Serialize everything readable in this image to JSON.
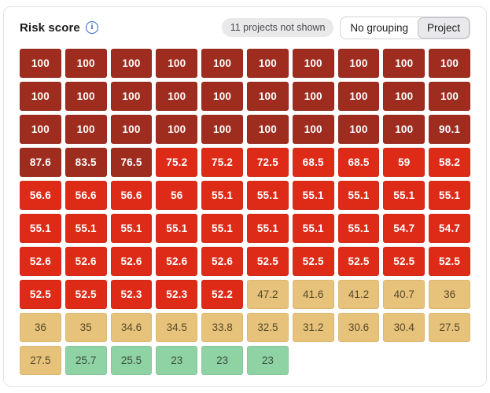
{
  "header": {
    "title": "Risk score",
    "info_icon": "i",
    "badge": "11 projects not shown",
    "grouping": [
      {
        "label": "No grouping",
        "selected": false
      },
      {
        "label": "Project",
        "selected": true
      }
    ]
  },
  "colors": {
    "accent_blue": "#2e5fc3",
    "badge_bg": "#e9e9ea",
    "card_border": "#e4e4e4",
    "levels": {
      "d": {
        "bg": "#9e2c1f",
        "text": "#ffffff"
      },
      "r": {
        "bg": "#dd2b17",
        "text": "#ffffff"
      },
      "t": {
        "bg": "#e7c27a",
        "text": "#57492a"
      },
      "g": {
        "bg": "#8fd2a3",
        "text": "#3a4f41"
      }
    }
  },
  "chart_data": {
    "type": "heatmap",
    "title": "Risk score",
    "note": "11 projects not shown",
    "grouping_options": [
      "No grouping",
      "Project"
    ],
    "selected_grouping": "Project",
    "columns": 10,
    "value_range": [
      0,
      100
    ],
    "legend": {
      "d": "critical (dark red)",
      "r": "high (red)",
      "t": "medium (tan)",
      "g": "low (green)"
    },
    "tiles": [
      {
        "value": "100",
        "level": "d"
      },
      {
        "value": "100",
        "level": "d"
      },
      {
        "value": "100",
        "level": "d"
      },
      {
        "value": "100",
        "level": "d"
      },
      {
        "value": "100",
        "level": "d"
      },
      {
        "value": "100",
        "level": "d"
      },
      {
        "value": "100",
        "level": "d"
      },
      {
        "value": "100",
        "level": "d"
      },
      {
        "value": "100",
        "level": "d"
      },
      {
        "value": "100",
        "level": "d"
      },
      {
        "value": "100",
        "level": "d"
      },
      {
        "value": "100",
        "level": "d"
      },
      {
        "value": "100",
        "level": "d"
      },
      {
        "value": "100",
        "level": "d"
      },
      {
        "value": "100",
        "level": "d"
      },
      {
        "value": "100",
        "level": "d"
      },
      {
        "value": "100",
        "level": "d"
      },
      {
        "value": "100",
        "level": "d"
      },
      {
        "value": "100",
        "level": "d"
      },
      {
        "value": "100",
        "level": "d"
      },
      {
        "value": "100",
        "level": "d"
      },
      {
        "value": "100",
        "level": "d"
      },
      {
        "value": "100",
        "level": "d"
      },
      {
        "value": "100",
        "level": "d"
      },
      {
        "value": "100",
        "level": "d"
      },
      {
        "value": "100",
        "level": "d"
      },
      {
        "value": "100",
        "level": "d"
      },
      {
        "value": "100",
        "level": "d"
      },
      {
        "value": "100",
        "level": "d"
      },
      {
        "value": "90.1",
        "level": "d"
      },
      {
        "value": "87.6",
        "level": "d"
      },
      {
        "value": "83.5",
        "level": "d"
      },
      {
        "value": "76.5",
        "level": "d"
      },
      {
        "value": "75.2",
        "level": "r"
      },
      {
        "value": "75.2",
        "level": "r"
      },
      {
        "value": "72.5",
        "level": "r"
      },
      {
        "value": "68.5",
        "level": "r"
      },
      {
        "value": "68.5",
        "level": "r"
      },
      {
        "value": "59",
        "level": "r"
      },
      {
        "value": "58.2",
        "level": "r"
      },
      {
        "value": "56.6",
        "level": "r"
      },
      {
        "value": "56.6",
        "level": "r"
      },
      {
        "value": "56.6",
        "level": "r"
      },
      {
        "value": "56",
        "level": "r"
      },
      {
        "value": "55.1",
        "level": "r"
      },
      {
        "value": "55.1",
        "level": "r"
      },
      {
        "value": "55.1",
        "level": "r"
      },
      {
        "value": "55.1",
        "level": "r"
      },
      {
        "value": "55.1",
        "level": "r"
      },
      {
        "value": "55.1",
        "level": "r"
      },
      {
        "value": "55.1",
        "level": "r"
      },
      {
        "value": "55.1",
        "level": "r"
      },
      {
        "value": "55.1",
        "level": "r"
      },
      {
        "value": "55.1",
        "level": "r"
      },
      {
        "value": "55.1",
        "level": "r"
      },
      {
        "value": "55.1",
        "level": "r"
      },
      {
        "value": "55.1",
        "level": "r"
      },
      {
        "value": "55.1",
        "level": "r"
      },
      {
        "value": "54.7",
        "level": "r"
      },
      {
        "value": "54.7",
        "level": "r"
      },
      {
        "value": "52.6",
        "level": "r"
      },
      {
        "value": "52.6",
        "level": "r"
      },
      {
        "value": "52.6",
        "level": "r"
      },
      {
        "value": "52.6",
        "level": "r"
      },
      {
        "value": "52.6",
        "level": "r"
      },
      {
        "value": "52.5",
        "level": "r"
      },
      {
        "value": "52.5",
        "level": "r"
      },
      {
        "value": "52.5",
        "level": "r"
      },
      {
        "value": "52.5",
        "level": "r"
      },
      {
        "value": "52.5",
        "level": "r"
      },
      {
        "value": "52.5",
        "level": "r"
      },
      {
        "value": "52.5",
        "level": "r"
      },
      {
        "value": "52.3",
        "level": "r"
      },
      {
        "value": "52.3",
        "level": "r"
      },
      {
        "value": "52.2",
        "level": "r"
      },
      {
        "value": "47.2",
        "level": "t"
      },
      {
        "value": "41.6",
        "level": "t"
      },
      {
        "value": "41.2",
        "level": "t"
      },
      {
        "value": "40.7",
        "level": "t"
      },
      {
        "value": "36",
        "level": "t"
      },
      {
        "value": "36",
        "level": "t"
      },
      {
        "value": "35",
        "level": "t"
      },
      {
        "value": "34.6",
        "level": "t"
      },
      {
        "value": "34.5",
        "level": "t"
      },
      {
        "value": "33.8",
        "level": "t"
      },
      {
        "value": "32.5",
        "level": "t"
      },
      {
        "value": "31.2",
        "level": "t"
      },
      {
        "value": "30.6",
        "level": "t"
      },
      {
        "value": "30.4",
        "level": "t"
      },
      {
        "value": "27.5",
        "level": "t"
      },
      {
        "value": "27.5",
        "level": "t"
      },
      {
        "value": "25.7",
        "level": "g"
      },
      {
        "value": "25.5",
        "level": "g"
      },
      {
        "value": "23",
        "level": "g"
      },
      {
        "value": "23",
        "level": "g"
      },
      {
        "value": "23",
        "level": "g"
      }
    ]
  }
}
